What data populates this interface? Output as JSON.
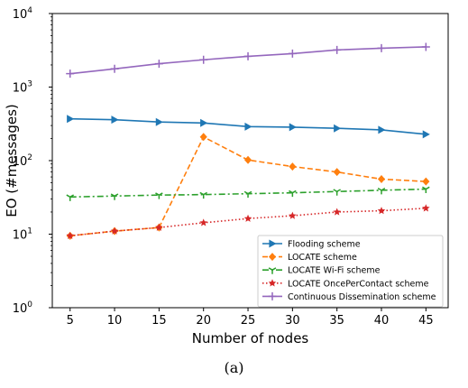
{
  "chart_data": {
    "type": "line",
    "xlabel": "Number of nodes",
    "ylabel": "EO (#messages)",
    "yscale": "log",
    "xlim": [
      3,
      47.5
    ],
    "ylim": [
      1,
      10000
    ],
    "x": [
      5,
      10,
      15,
      20,
      25,
      30,
      35,
      40,
      45
    ],
    "xticks": [
      "5",
      "10",
      "15",
      "20",
      "25",
      "30",
      "35",
      "40",
      "45"
    ],
    "yticks": [
      {
        "value": 1,
        "base": "10",
        "exp": "0"
      },
      {
        "value": 10,
        "base": "10",
        "exp": "1"
      },
      {
        "value": 100,
        "base": "10",
        "exp": "2"
      },
      {
        "value": 1000,
        "base": "10",
        "exp": "3"
      },
      {
        "value": 10000,
        "base": "10",
        "exp": "4"
      }
    ],
    "grid": false,
    "legend_position": "lower-right",
    "series": [
      {
        "name": "Flooding scheme",
        "color": "#1f77b4",
        "linestyle": "solid",
        "marker": "triangle-right",
        "values": [
          370,
          360,
          335,
          325,
          290,
          285,
          275,
          262,
          228
        ]
      },
      {
        "name": "LOCATE scheme",
        "color": "#ff7f0e",
        "linestyle": "dashed",
        "marker": "diamond",
        "values": [
          9.5,
          11,
          12.3,
          210,
          102,
          83,
          70,
          56,
          52
        ]
      },
      {
        "name": "LOCATE Wi-Fi scheme",
        "color": "#2ca02c",
        "linestyle": "dashdot",
        "marker": "tri-down",
        "values": [
          32,
          33,
          34,
          34.5,
          35.5,
          36.5,
          38,
          39.5,
          41
        ]
      },
      {
        "name": "LOCATE OncePerContact scheme",
        "color": "#d62728",
        "linestyle": "dotted",
        "marker": "star",
        "values": [
          9.5,
          11,
          12.3,
          14.3,
          16.3,
          17.8,
          20,
          20.8,
          22.5
        ]
      },
      {
        "name": "Continuous Dissemination scheme",
        "color": "#9467bd",
        "linestyle": "solid",
        "marker": "plus",
        "values": [
          1520,
          1770,
          2080,
          2350,
          2620,
          2850,
          3200,
          3380,
          3520
        ]
      }
    ]
  },
  "caption": "(a)"
}
